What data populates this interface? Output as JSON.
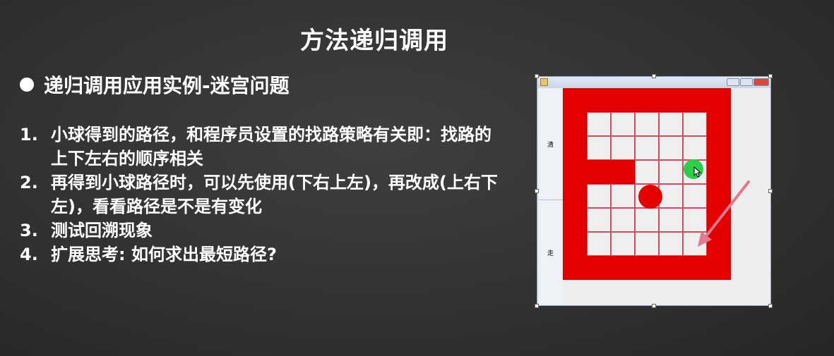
{
  "slide": {
    "title": "方法递归调用",
    "bullet": "递归调用应用实例-迷宫问题",
    "items": [
      {
        "num": "1.",
        "text": "小球得到的路径，和程序员设置的找路策略有关即：找路的上下左右的顺序相关"
      },
      {
        "num": "2.",
        "text": "再得到小球路径时，可以先使用(下右上左)，再改成(上右下左)，看看路径是不是有变化"
      },
      {
        "num": "3.",
        "text": "测试回溯现象"
      },
      {
        "num": "4.",
        "text": "扩展思考: 如何求出最短路径?"
      }
    ]
  },
  "app": {
    "buttons": {
      "top": "清",
      "bottom": "走"
    },
    "colors": {
      "wall": "#e50000",
      "open": "#efefef",
      "grid_line": "#d24b5f",
      "ball_green": "#29d14a",
      "ball_red": "#e50000",
      "arrow": "#e07a8c"
    }
  }
}
